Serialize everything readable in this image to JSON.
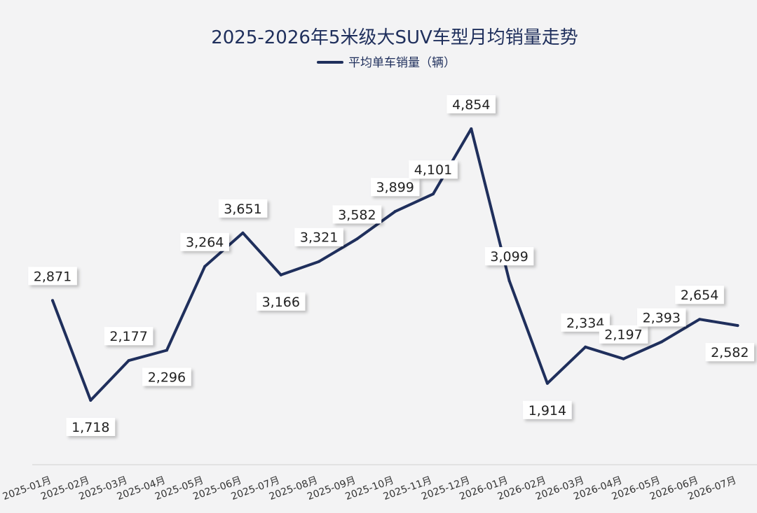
{
  "chart_data": {
    "type": "line",
    "title": "2025-2026年5米级大SUV车型月均销量走势",
    "xlabel": "",
    "ylabel": "",
    "grid": false,
    "legend_position": "top-center",
    "categories": [
      "2025-01月",
      "2025-02月",
      "2025-03月",
      "2025-04月",
      "2025-05月",
      "2025-06月",
      "2025-07月",
      "2025-08月",
      "2025-09月",
      "2025-10月",
      "2025-11月",
      "2025-12月",
      "2026-01月",
      "2026-02月",
      "2026-03月",
      "2026-04月",
      "2026-05月",
      "2026-06月",
      "2026-07月"
    ],
    "series": [
      {
        "name": "平均单车销量（辆）",
        "color": "#1f2f5c",
        "values": [
          2871,
          1718,
          2177,
          2296,
          3264,
          3651,
          3166,
          3321,
          3582,
          3899,
          4101,
          4854,
          3099,
          1914,
          2334,
          2197,
          2393,
          2654,
          2582
        ],
        "labels": [
          "2,871",
          "1,718",
          "2,177",
          "2,296",
          "3,264",
          "3,651",
          "3,166",
          "3,321",
          "3,582",
          "3,899",
          "4,101",
          "4,854",
          "3,099",
          "1,914",
          "2,334",
          "2,197",
          "2,393",
          "2,654",
          "2,582"
        ],
        "label_positions": [
          "above",
          "below",
          "above",
          "below",
          "above",
          "above",
          "below",
          "above",
          "above",
          "above",
          "above",
          "above",
          "above",
          "below",
          "above",
          "above",
          "above",
          "above",
          "below"
        ]
      }
    ]
  }
}
